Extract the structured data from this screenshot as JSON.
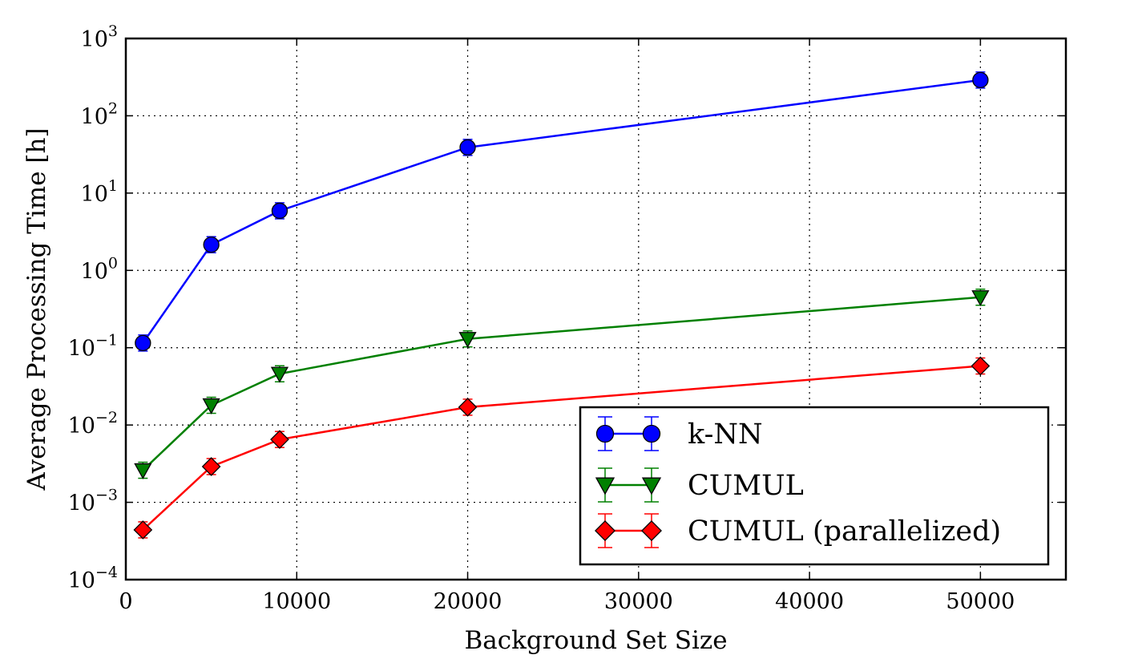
{
  "chart_data": {
    "type": "line",
    "title": "",
    "xlabel": "Background Set Size",
    "ylabel": "Average Processing Time [h]",
    "xlim": [
      0,
      55000
    ],
    "ylim": [
      0.0001,
      1000
    ],
    "yscale": "log",
    "grid": true,
    "legend_position": "lower-right",
    "x_ticks": [
      0,
      10000,
      20000,
      30000,
      40000,
      50000
    ],
    "x_tick_labels": [
      "0",
      "10000",
      "20000",
      "30000",
      "40000",
      "50000"
    ],
    "y_ticks": [
      -4,
      -3,
      -2,
      -1,
      0,
      1,
      2,
      3
    ],
    "y_tick_base": "10",
    "y_tick_exponents": [
      "−4",
      "−3",
      "−2",
      "−1",
      "0",
      "1",
      "2",
      "3"
    ],
    "series": [
      {
        "name": "k-NN",
        "color": "#0000ff",
        "marker": "circle",
        "x": [
          1000,
          5000,
          9000,
          20000,
          50000
        ],
        "y": [
          0.115,
          2.15,
          5.9,
          39,
          290
        ]
      },
      {
        "name": "CUMUL",
        "color": "#008000",
        "marker": "triangle-down",
        "x": [
          1000,
          5000,
          9000,
          20000,
          50000
        ],
        "y": [
          0.0026,
          0.018,
          0.046,
          0.13,
          0.45
        ]
      },
      {
        "name": "CUMUL (parallelized)",
        "color": "#ff0000",
        "marker": "diamond",
        "x": [
          1000,
          5000,
          9000,
          20000,
          50000
        ],
        "y": [
          0.00044,
          0.0029,
          0.0065,
          0.017,
          0.058
        ]
      }
    ]
  }
}
